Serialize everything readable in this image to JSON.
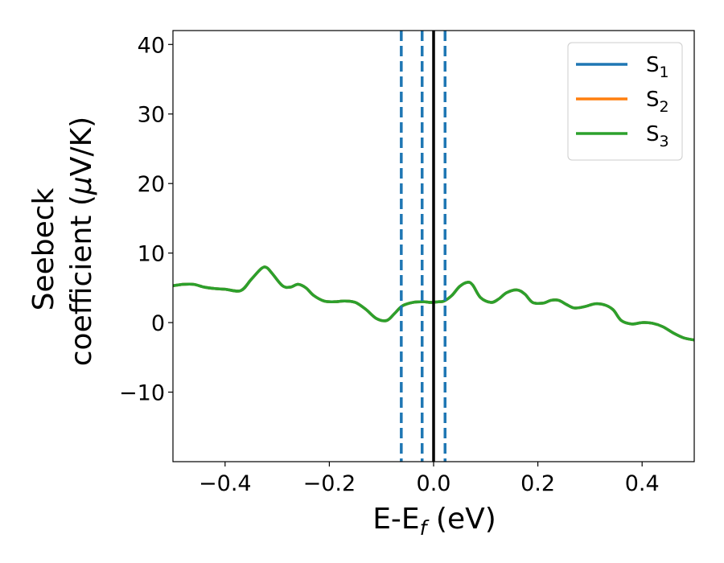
{
  "chart_data": {
    "type": "line",
    "title": "",
    "xlabel": {
      "main": "E-E",
      "sub": "f",
      "unit": " (eV)"
    },
    "ylabel": {
      "line1": "Seebeck",
      "line2_prefix": "coefficient  (",
      "mu": "μ",
      "line2_suffix": "V/K)"
    },
    "xlim": [
      -0.5,
      0.5
    ],
    "ylim": [
      -20,
      42
    ],
    "xticks": [
      -0.4,
      -0.2,
      0.0,
      0.2,
      0.4
    ],
    "xtick_labels": [
      "−0.4",
      "−0.2",
      "0.0",
      "0.2",
      "0.4"
    ],
    "yticks": [
      -10,
      0,
      10,
      20,
      30,
      40
    ],
    "ytick_labels": [
      "−10",
      "0",
      "10",
      "20",
      "30",
      "40"
    ],
    "grid": false,
    "legend": {
      "placement": "top-right",
      "entries": [
        {
          "base": "S",
          "sub": "1",
          "color": "#1f77b4"
        },
        {
          "base": "S",
          "sub": "2",
          "color": "#ff7f0e"
        },
        {
          "base": "S",
          "sub": "3",
          "color": "#2ca02c"
        }
      ]
    },
    "vlines": [
      {
        "x": -0.062,
        "style": "dashed",
        "color": "#1f77b4"
      },
      {
        "x": -0.022,
        "style": "dashed",
        "color": "#1f77b4"
      },
      {
        "x": 0.0,
        "style": "solid",
        "color": "#000000"
      },
      {
        "x": 0.022,
        "style": "dashed",
        "color": "#1f77b4"
      }
    ],
    "series": [
      {
        "name": "S1",
        "color": "#1f77b4",
        "x": [
          -0.5,
          -0.48,
          -0.46,
          -0.44,
          -0.42,
          -0.4,
          -0.37,
          -0.35,
          -0.33,
          -0.32,
          -0.31,
          -0.29,
          -0.275,
          -0.26,
          -0.245,
          -0.23,
          -0.21,
          -0.19,
          -0.17,
          -0.15,
          -0.13,
          -0.11,
          -0.09,
          -0.075,
          -0.06,
          -0.04,
          -0.02,
          -0.005,
          0.01,
          0.02,
          0.035,
          0.05,
          0.065,
          0.075,
          0.09,
          0.11,
          0.125,
          0.14,
          0.16,
          0.175,
          0.19,
          0.21,
          0.225,
          0.24,
          0.255,
          0.27,
          0.29,
          0.31,
          0.33,
          0.345,
          0.36,
          0.38,
          0.4,
          0.42,
          0.44,
          0.46,
          0.48,
          0.5
        ],
        "y": [
          5.3,
          5.5,
          5.5,
          5.1,
          4.9,
          4.8,
          4.6,
          6.2,
          7.8,
          7.9,
          7.1,
          5.3,
          5.1,
          5.5,
          5.0,
          3.9,
          3.1,
          3.0,
          3.1,
          2.9,
          1.9,
          0.6,
          0.3,
          1.3,
          2.4,
          2.9,
          3.0,
          2.9,
          3.0,
          3.1,
          3.9,
          5.2,
          5.8,
          5.4,
          3.6,
          2.9,
          3.4,
          4.3,
          4.7,
          4.1,
          2.9,
          2.8,
          3.2,
          3.2,
          2.6,
          2.1,
          2.3,
          2.7,
          2.5,
          1.8,
          0.3,
          -0.2,
          0.0,
          -0.1,
          -0.6,
          -1.5,
          -2.2,
          -2.5
        ]
      },
      {
        "name": "S2",
        "color": "#ff7f0e",
        "x": [
          -0.5,
          -0.48,
          -0.46,
          -0.44,
          -0.42,
          -0.4,
          -0.37,
          -0.35,
          -0.33,
          -0.32,
          -0.31,
          -0.29,
          -0.275,
          -0.26,
          -0.245,
          -0.23,
          -0.21,
          -0.19,
          -0.17,
          -0.15,
          -0.13,
          -0.11,
          -0.09,
          -0.075,
          -0.06,
          -0.04,
          -0.02,
          -0.005,
          0.01,
          0.02,
          0.035,
          0.05,
          0.065,
          0.075,
          0.09,
          0.11,
          0.125,
          0.14,
          0.16,
          0.175,
          0.19,
          0.21,
          0.225,
          0.24,
          0.255,
          0.27,
          0.29,
          0.31,
          0.33,
          0.345,
          0.36,
          0.38,
          0.4,
          0.42,
          0.44,
          0.46,
          0.48,
          0.5
        ],
        "y": [
          5.3,
          5.5,
          5.5,
          5.1,
          4.9,
          4.8,
          4.6,
          6.2,
          7.8,
          7.9,
          7.1,
          5.3,
          5.1,
          5.5,
          5.0,
          3.9,
          3.1,
          3.0,
          3.1,
          2.9,
          1.9,
          0.6,
          0.3,
          1.3,
          2.4,
          2.9,
          3.0,
          2.9,
          3.0,
          3.1,
          3.9,
          5.2,
          5.8,
          5.4,
          3.6,
          2.9,
          3.4,
          4.3,
          4.7,
          4.1,
          2.9,
          2.8,
          3.2,
          3.2,
          2.6,
          2.1,
          2.3,
          2.7,
          2.5,
          1.8,
          0.3,
          -0.2,
          0.0,
          -0.1,
          -0.6,
          -1.5,
          -2.2,
          -2.5
        ]
      },
      {
        "name": "S3",
        "color": "#2ca02c",
        "x": [
          -0.5,
          -0.48,
          -0.46,
          -0.44,
          -0.42,
          -0.4,
          -0.37,
          -0.35,
          -0.33,
          -0.32,
          -0.31,
          -0.29,
          -0.275,
          -0.26,
          -0.245,
          -0.23,
          -0.21,
          -0.19,
          -0.17,
          -0.15,
          -0.13,
          -0.11,
          -0.09,
          -0.075,
          -0.06,
          -0.04,
          -0.02,
          -0.005,
          0.01,
          0.02,
          0.035,
          0.05,
          0.065,
          0.075,
          0.09,
          0.11,
          0.125,
          0.14,
          0.16,
          0.175,
          0.19,
          0.21,
          0.225,
          0.24,
          0.255,
          0.27,
          0.29,
          0.31,
          0.33,
          0.345,
          0.36,
          0.38,
          0.4,
          0.42,
          0.44,
          0.46,
          0.48,
          0.5
        ],
        "y": [
          5.3,
          5.5,
          5.5,
          5.1,
          4.9,
          4.8,
          4.6,
          6.2,
          7.8,
          7.9,
          7.1,
          5.3,
          5.1,
          5.5,
          5.0,
          3.9,
          3.1,
          3.0,
          3.1,
          2.9,
          1.9,
          0.6,
          0.3,
          1.3,
          2.4,
          2.9,
          3.0,
          2.9,
          3.0,
          3.1,
          3.9,
          5.2,
          5.8,
          5.4,
          3.6,
          2.9,
          3.4,
          4.3,
          4.7,
          4.1,
          2.9,
          2.8,
          3.2,
          3.2,
          2.6,
          2.1,
          2.3,
          2.7,
          2.5,
          1.8,
          0.3,
          -0.2,
          0.0,
          -0.1,
          -0.6,
          -1.5,
          -2.2,
          -2.5
        ]
      }
    ]
  }
}
